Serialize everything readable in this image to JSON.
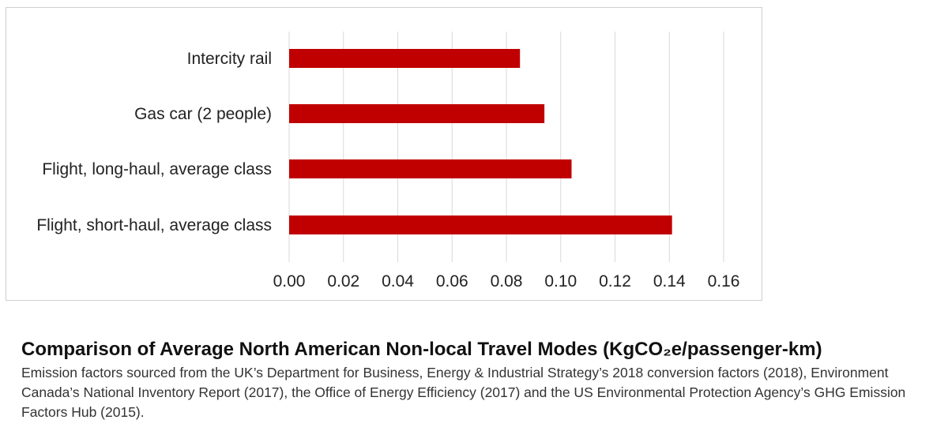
{
  "chart_data": {
    "type": "bar",
    "orientation": "horizontal",
    "categories": [
      "Intercity rail",
      "Gas car (2 people)",
      "Flight, long-haul, average class",
      "Flight, short-haul, average class"
    ],
    "values": [
      0.085,
      0.094,
      0.104,
      0.141
    ],
    "xlim": [
      0,
      0.16
    ],
    "xticks": [
      "0.00",
      "0.02",
      "0.04",
      "0.06",
      "0.08",
      "0.10",
      "0.12",
      "0.14",
      "0.16"
    ],
    "bar_color": "#C00000",
    "grid": "vertical",
    "legend": "none"
  },
  "caption": {
    "title": "Comparison of Average North American Non-local Travel Modes (KgCO₂e/passenger-km)",
    "body": "Emission factors sourced from the UK’s Department for Business, Energy & Industrial Strategy’s 2018 conversion factors (2018), Environment Canada’s National Inventory Report (2017), the Office of Energy Efficiency (2017) and the US Environmental Protection Agency’s GHG Emission Factors Hub (2015)."
  }
}
